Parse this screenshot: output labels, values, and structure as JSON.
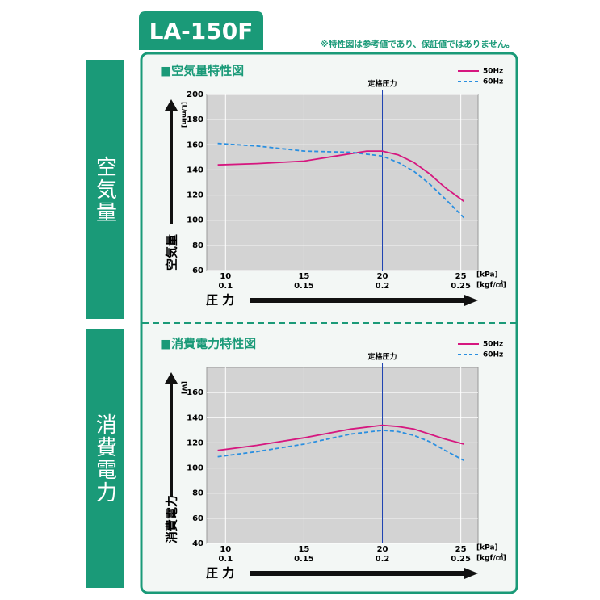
{
  "header": {
    "model": "LA-150F",
    "note": "※特性図は参考値であり、保証値ではありません。"
  },
  "side_labels": [
    "空気量",
    "消費電力"
  ],
  "chart_data": [
    {
      "type": "line",
      "title": "■空気量特性図",
      "y_label": "空気量",
      "y_unit": "[L/min]",
      "x_label": "圧 力",
      "x_units": [
        "[kPa]",
        "[kgf/㎠]"
      ],
      "annotation": "定格圧力",
      "annotation_x": 20,
      "xlim": [
        8.8,
        26.1
      ],
      "ylim": [
        60,
        200
      ],
      "xticks": [
        10,
        15,
        20,
        25
      ],
      "xticks_kgf": [
        0.1,
        0.15,
        0.2,
        0.25
      ],
      "yticks": [
        60,
        80,
        100,
        120,
        140,
        160,
        180,
        200
      ],
      "grid": true,
      "series": [
        {
          "name": "50Hz",
          "color": "#d6177f",
          "dashed": false,
          "x": [
            9.5,
            12,
            15,
            17,
            19,
            20,
            21,
            22,
            23,
            24,
            25.2
          ],
          "values": [
            144,
            145,
            147,
            151,
            155,
            155,
            152,
            146,
            137,
            126,
            115
          ]
        },
        {
          "name": "60Hz",
          "color": "#2a8fe0",
          "dashed": true,
          "x": [
            9.5,
            12,
            15,
            18,
            20,
            21,
            22,
            23,
            24,
            25.2
          ],
          "values": [
            161,
            159,
            155,
            154,
            151,
            146,
            139,
            129,
            117,
            102
          ]
        }
      ]
    },
    {
      "type": "line",
      "title": "■消費電力特性図",
      "y_label": "消費電力",
      "y_unit": "[W]",
      "x_label": "圧 力",
      "x_units": [
        "[kPa]",
        "[kgf/㎠]"
      ],
      "annotation": "定格圧力",
      "annotation_x": 20,
      "xlim": [
        8.8,
        26.1
      ],
      "ylim": [
        40,
        180
      ],
      "xticks": [
        10,
        15,
        20,
        25
      ],
      "xticks_kgf": [
        0.1,
        0.15,
        0.2,
        0.25
      ],
      "yticks": [
        40,
        60,
        80,
        100,
        120,
        140,
        160
      ],
      "grid": true,
      "series": [
        {
          "name": "50Hz",
          "color": "#d6177f",
          "dashed": false,
          "x": [
            9.5,
            12,
            15,
            18,
            20,
            21,
            22,
            23,
            24,
            25.2
          ],
          "values": [
            114,
            118,
            124,
            131,
            134,
            133,
            131,
            127,
            123,
            119
          ]
        },
        {
          "name": "60Hz",
          "color": "#2a8fe0",
          "dashed": true,
          "x": [
            9.5,
            12,
            15,
            18,
            20,
            21,
            22,
            23,
            24,
            25.2
          ],
          "values": [
            109,
            113,
            119,
            127,
            130,
            129,
            126,
            121,
            114,
            106
          ]
        }
      ]
    }
  ]
}
